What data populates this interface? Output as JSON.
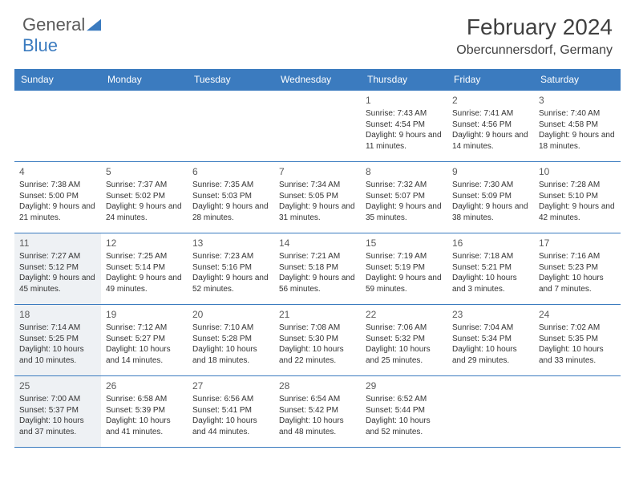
{
  "logo": {
    "general": "General",
    "blue": "Blue"
  },
  "title": "February 2024",
  "location": "Obercunnersdorf, Germany",
  "colors": {
    "brand": "#3b7bbf",
    "text": "#404040",
    "shade": "#eef1f4",
    "cell_text": "#333333"
  },
  "day_headers": [
    "Sunday",
    "Monday",
    "Tuesday",
    "Wednesday",
    "Thursday",
    "Friday",
    "Saturday"
  ],
  "weeks": [
    [
      {
        "blank": true
      },
      {
        "blank": true
      },
      {
        "blank": true
      },
      {
        "blank": true
      },
      {
        "day": "1",
        "sunrise": "7:43 AM",
        "sunset": "4:54 PM",
        "daylight": "9 hours and 11 minutes."
      },
      {
        "day": "2",
        "sunrise": "7:41 AM",
        "sunset": "4:56 PM",
        "daylight": "9 hours and 14 minutes."
      },
      {
        "day": "3",
        "sunrise": "7:40 AM",
        "sunset": "4:58 PM",
        "daylight": "9 hours and 18 minutes."
      }
    ],
    [
      {
        "day": "4",
        "sunrise": "7:38 AM",
        "sunset": "5:00 PM",
        "daylight": "9 hours and 21 minutes."
      },
      {
        "day": "5",
        "sunrise": "7:37 AM",
        "sunset": "5:02 PM",
        "daylight": "9 hours and 24 minutes."
      },
      {
        "day": "6",
        "sunrise": "7:35 AM",
        "sunset": "5:03 PM",
        "daylight": "9 hours and 28 minutes."
      },
      {
        "day": "7",
        "sunrise": "7:34 AM",
        "sunset": "5:05 PM",
        "daylight": "9 hours and 31 minutes."
      },
      {
        "day": "8",
        "sunrise": "7:32 AM",
        "sunset": "5:07 PM",
        "daylight": "9 hours and 35 minutes."
      },
      {
        "day": "9",
        "sunrise": "7:30 AM",
        "sunset": "5:09 PM",
        "daylight": "9 hours and 38 minutes."
      },
      {
        "day": "10",
        "sunrise": "7:28 AM",
        "sunset": "5:10 PM",
        "daylight": "9 hours and 42 minutes."
      }
    ],
    [
      {
        "day": "11",
        "shade": true,
        "sunrise": "7:27 AM",
        "sunset": "5:12 PM",
        "daylight": "9 hours and 45 minutes."
      },
      {
        "day": "12",
        "sunrise": "7:25 AM",
        "sunset": "5:14 PM",
        "daylight": "9 hours and 49 minutes."
      },
      {
        "day": "13",
        "sunrise": "7:23 AM",
        "sunset": "5:16 PM",
        "daylight": "9 hours and 52 minutes."
      },
      {
        "day": "14",
        "sunrise": "7:21 AM",
        "sunset": "5:18 PM",
        "daylight": "9 hours and 56 minutes."
      },
      {
        "day": "15",
        "sunrise": "7:19 AM",
        "sunset": "5:19 PM",
        "daylight": "9 hours and 59 minutes."
      },
      {
        "day": "16",
        "sunrise": "7:18 AM",
        "sunset": "5:21 PM",
        "daylight": "10 hours and 3 minutes."
      },
      {
        "day": "17",
        "sunrise": "7:16 AM",
        "sunset": "5:23 PM",
        "daylight": "10 hours and 7 minutes."
      }
    ],
    [
      {
        "day": "18",
        "shade": true,
        "sunrise": "7:14 AM",
        "sunset": "5:25 PM",
        "daylight": "10 hours and 10 minutes."
      },
      {
        "day": "19",
        "sunrise": "7:12 AM",
        "sunset": "5:27 PM",
        "daylight": "10 hours and 14 minutes."
      },
      {
        "day": "20",
        "sunrise": "7:10 AM",
        "sunset": "5:28 PM",
        "daylight": "10 hours and 18 minutes."
      },
      {
        "day": "21",
        "sunrise": "7:08 AM",
        "sunset": "5:30 PM",
        "daylight": "10 hours and 22 minutes."
      },
      {
        "day": "22",
        "sunrise": "7:06 AM",
        "sunset": "5:32 PM",
        "daylight": "10 hours and 25 minutes."
      },
      {
        "day": "23",
        "sunrise": "7:04 AM",
        "sunset": "5:34 PM",
        "daylight": "10 hours and 29 minutes."
      },
      {
        "day": "24",
        "sunrise": "7:02 AM",
        "sunset": "5:35 PM",
        "daylight": "10 hours and 33 minutes."
      }
    ],
    [
      {
        "day": "25",
        "shade": true,
        "sunrise": "7:00 AM",
        "sunset": "5:37 PM",
        "daylight": "10 hours and 37 minutes."
      },
      {
        "day": "26",
        "sunrise": "6:58 AM",
        "sunset": "5:39 PM",
        "daylight": "10 hours and 41 minutes."
      },
      {
        "day": "27",
        "sunrise": "6:56 AM",
        "sunset": "5:41 PM",
        "daylight": "10 hours and 44 minutes."
      },
      {
        "day": "28",
        "sunrise": "6:54 AM",
        "sunset": "5:42 PM",
        "daylight": "10 hours and 48 minutes."
      },
      {
        "day": "29",
        "sunrise": "6:52 AM",
        "sunset": "5:44 PM",
        "daylight": "10 hours and 52 minutes."
      },
      {
        "blank": true
      },
      {
        "blank": true
      }
    ]
  ],
  "labels": {
    "sunrise": "Sunrise: ",
    "sunset": "Sunset: ",
    "daylight": "Daylight: "
  }
}
